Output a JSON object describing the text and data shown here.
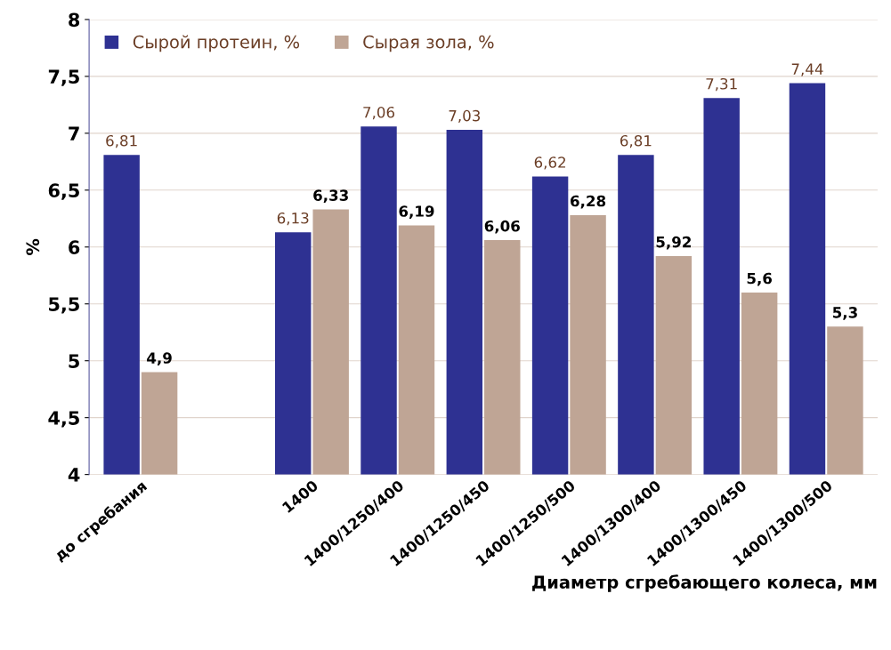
{
  "chart_data": {
    "type": "bar",
    "xlabel": "Диаметр сгребающего колеса, мм",
    "ylabel": "%",
    "categories": [
      "до сгребания",
      null,
      "1400",
      "1400/1250/400",
      "1400/1250/450",
      "1400/1250/500",
      "1400/1300/400",
      "1400/1300/450",
      "1400/1300/500"
    ],
    "series": [
      {
        "name": "Сырой протеин, %",
        "color": "#2e3192",
        "values": [
          6.81,
          null,
          6.13,
          7.06,
          7.03,
          6.62,
          6.81,
          7.31,
          7.44
        ],
        "value_labels": [
          "6,81",
          null,
          "6,13",
          "7,06",
          "7,03",
          "6,62",
          "6,81",
          "7,31",
          "7,44"
        ]
      },
      {
        "name": "Сырая зола, %",
        "color": "#bfa595",
        "values": [
          4.9,
          null,
          6.33,
          6.19,
          6.06,
          6.28,
          5.92,
          5.6,
          5.3
        ],
        "value_labels": [
          "4,9",
          null,
          "6,33",
          "6,19",
          "6,06",
          "6,28",
          "5,92",
          "5,6",
          "5,3"
        ]
      }
    ],
    "ylim": [
      4,
      8
    ],
    "yticks": [
      4,
      {
        "value": 4.5,
        "label": "4,5"
      },
      5,
      {
        "value": 5.5,
        "label": "5,5"
      },
      6,
      {
        "value": 6.5,
        "label": "6,5"
      },
      7,
      {
        "value": 7.5,
        "label": "7,5"
      },
      8
    ],
    "grid": "y",
    "legend": "top left"
  }
}
